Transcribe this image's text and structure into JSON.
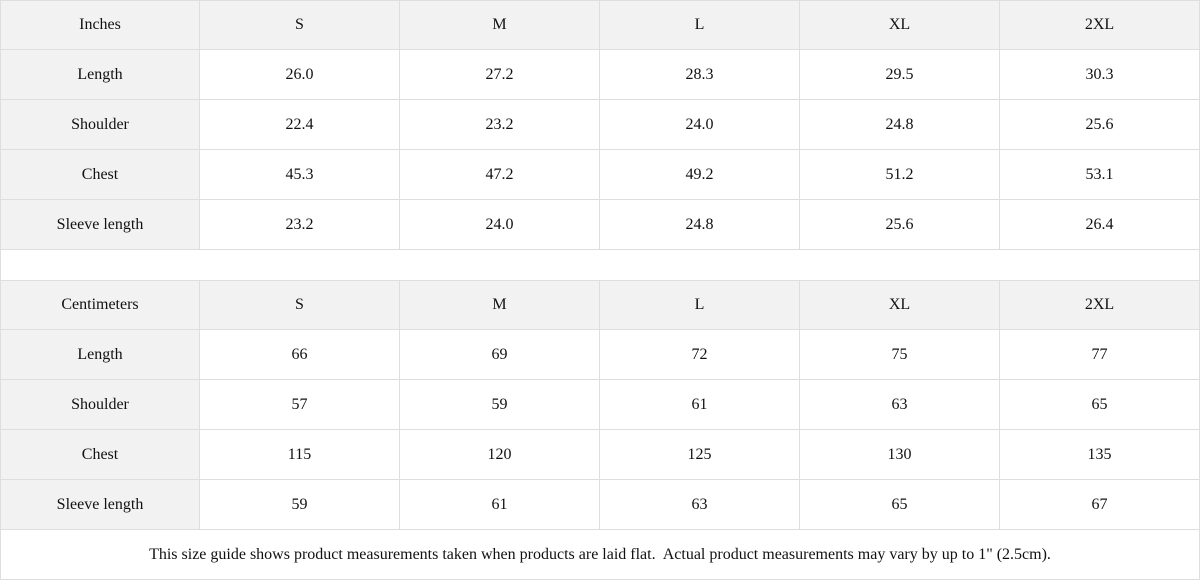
{
  "tables": [
    {
      "header": [
        "Inches",
        "S",
        "M",
        "L",
        "XL",
        "2XL"
      ],
      "rows": [
        [
          "Length",
          "26.0",
          "27.2",
          "28.3",
          "29.5",
          "30.3"
        ],
        [
          "Shoulder",
          "22.4",
          "23.2",
          "24.0",
          "24.8",
          "25.6"
        ],
        [
          "Chest",
          "45.3",
          "47.2",
          "49.2",
          "51.2",
          "53.1"
        ],
        [
          "Sleeve length",
          "23.2",
          "24.0",
          "24.8",
          "25.6",
          "26.4"
        ]
      ]
    },
    {
      "header": [
        "Centimeters",
        "S",
        "M",
        "L",
        "XL",
        "2XL"
      ],
      "rows": [
        [
          "Length",
          "66",
          "69",
          "72",
          "75",
          "77"
        ],
        [
          "Shoulder",
          "57",
          "59",
          "61",
          "63",
          "65"
        ],
        [
          "Chest",
          "115",
          "120",
          "125",
          "130",
          "135"
        ],
        [
          "Sleeve length",
          "59",
          "61",
          "63",
          "65",
          "67"
        ]
      ]
    }
  ],
  "note": "This size guide shows product measurements taken when products are laid flat.  Actual product measurements may vary by up to 1\" (2.5cm)."
}
